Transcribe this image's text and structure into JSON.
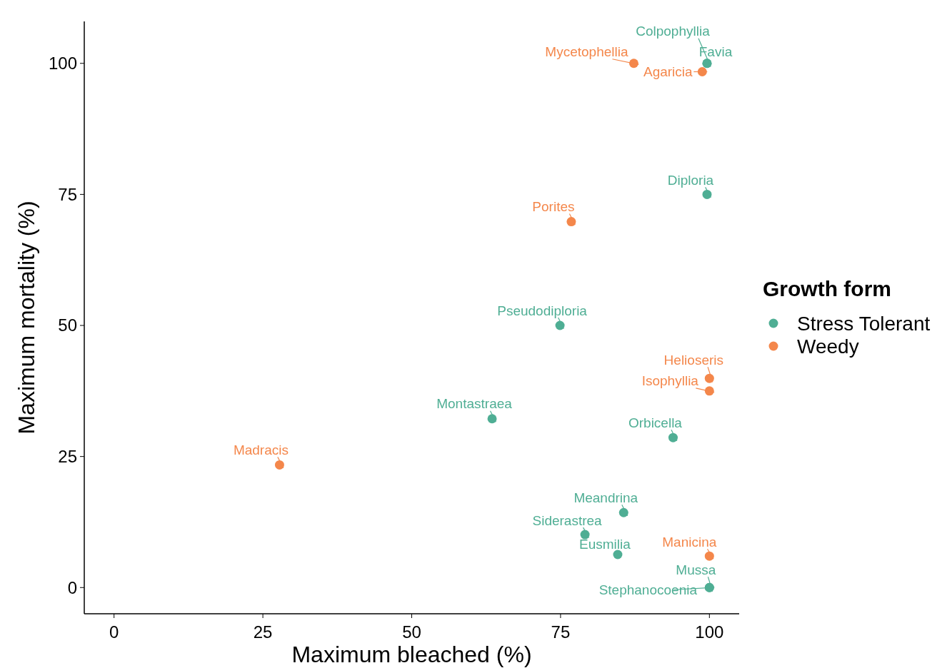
{
  "chart_data": {
    "type": "scatter",
    "xlabel": "Maximum bleached (%)",
    "ylabel": "Maximum mortality (%)",
    "legend_title": "Growth form",
    "legend": "right",
    "marker": "circle",
    "xlim": [
      -5,
      105
    ],
    "ylim": [
      -5,
      108
    ],
    "xticks": [
      0,
      25,
      50,
      75,
      100
    ],
    "yticks": [
      0,
      25,
      50,
      75,
      100
    ],
    "series": [
      {
        "name": "Stress Tolerant",
        "color": "#4fae94",
        "x": [
          99.6,
          99.6,
          74.9,
          99.6,
          63.5,
          93.9,
          85.6,
          79.1,
          84.6,
          100,
          100
        ],
        "values": [
          100,
          100,
          50,
          75,
          32.2,
          28.6,
          14.3,
          10.1,
          6.3,
          0,
          0
        ]
      },
      {
        "name": "Weedy",
        "color": "#f4874b",
        "x": [
          87.3,
          98.8,
          76.8,
          100,
          100,
          27.8,
          100
        ],
        "values": [
          100,
          98.4,
          69.8,
          39.9,
          37.5,
          23.4,
          6.0
        ]
      }
    ],
    "annotations": [
      {
        "text": "Colpophyllia",
        "x": 99.6,
        "y": 100
      },
      {
        "text": "Favia",
        "x": 99.6,
        "y": 100
      },
      {
        "text": "Pseudodiploria",
        "x": 74.9,
        "y": 50
      },
      {
        "text": "Diploria",
        "x": 99.6,
        "y": 75
      },
      {
        "text": "Montastraea",
        "x": 63.5,
        "y": 32.2
      },
      {
        "text": "Orbicella",
        "x": 93.9,
        "y": 28.6
      },
      {
        "text": "Meandrina",
        "x": 85.6,
        "y": 14.3
      },
      {
        "text": "Siderastrea",
        "x": 79.1,
        "y": 10.1
      },
      {
        "text": "Eusmilia",
        "x": 84.6,
        "y": 6.3
      },
      {
        "text": "Mussa",
        "x": 100,
        "y": 0
      },
      {
        "text": "Stephanocoenia",
        "x": 100,
        "y": 0
      },
      {
        "text": "Mycetophellia",
        "x": 87.3,
        "y": 100
      },
      {
        "text": "Agaricia",
        "x": 98.8,
        "y": 98.4
      },
      {
        "text": "Porites",
        "x": 76.8,
        "y": 69.8
      },
      {
        "text": "Helioseris",
        "x": 100,
        "y": 39.9
      },
      {
        "text": "Isophyllia",
        "x": 100,
        "y": 37.5
      },
      {
        "text": "Madracis",
        "x": 27.8,
        "y": 23.4
      },
      {
        "text": "Manicina",
        "x": 100,
        "y": 6.0
      }
    ]
  }
}
